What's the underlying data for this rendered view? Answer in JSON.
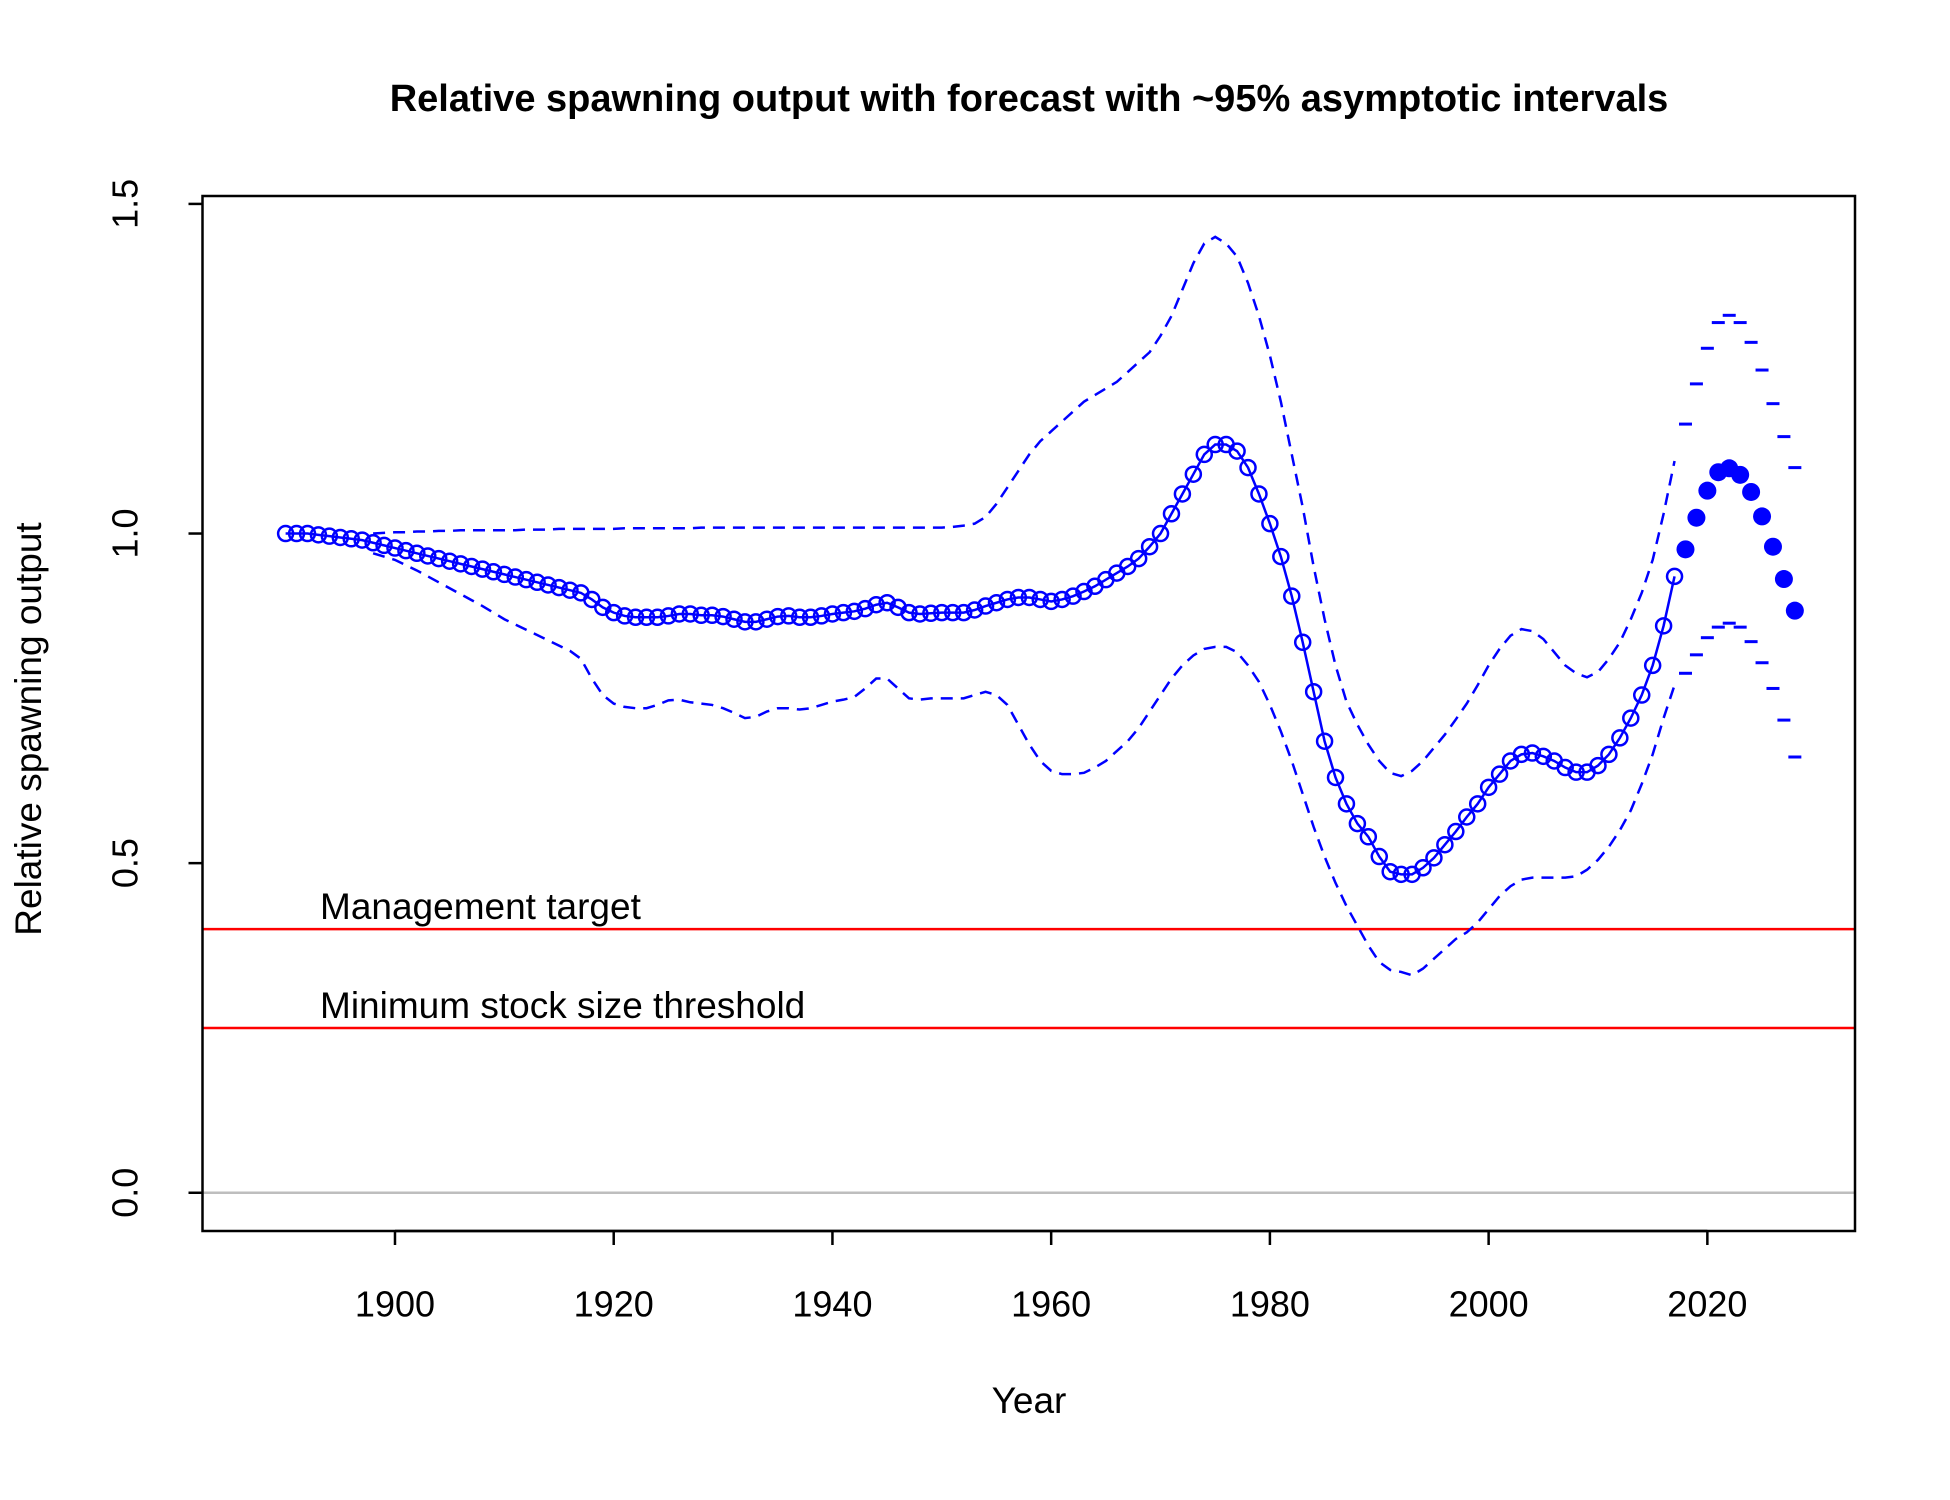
{
  "chart_data": {
    "type": "line",
    "title": "Relative spawning output with forecast with ~95% asymptotic intervals",
    "xlabel": "Year",
    "ylabel": "Relative spawning output",
    "xlim": [
      1882.4,
      2033.5
    ],
    "ylim": [
      -0.058,
      1.512
    ],
    "xticks": [
      1900,
      1920,
      1940,
      1960,
      1980,
      2000,
      2020
    ],
    "yticks": [
      {
        "value": 0,
        "label": "0.0"
      },
      0.5,
      {
        "value": 1,
        "label": "1.0"
      },
      {
        "value": 1.5,
        "label": "1.5"
      }
    ],
    "x": [
      1890,
      1891,
      1892,
      1893,
      1894,
      1895,
      1896,
      1897,
      1898,
      1899,
      1900,
      1901,
      1902,
      1903,
      1904,
      1905,
      1906,
      1907,
      1908,
      1909,
      1910,
      1911,
      1912,
      1913,
      1914,
      1915,
      1916,
      1917,
      1918,
      1919,
      1920,
      1921,
      1922,
      1923,
      1924,
      1925,
      1926,
      1927,
      1928,
      1929,
      1930,
      1931,
      1932,
      1933,
      1934,
      1935,
      1936,
      1937,
      1938,
      1939,
      1940,
      1941,
      1942,
      1943,
      1944,
      1945,
      1946,
      1947,
      1948,
      1949,
      1950,
      1951,
      1952,
      1953,
      1954,
      1955,
      1956,
      1957,
      1958,
      1959,
      1960,
      1961,
      1962,
      1963,
      1964,
      1965,
      1966,
      1967,
      1968,
      1969,
      1970,
      1971,
      1972,
      1973,
      1974,
      1975,
      1976,
      1977,
      1978,
      1979,
      1980,
      1981,
      1982,
      1983,
      1984,
      1985,
      1986,
      1987,
      1988,
      1989,
      1990,
      1991,
      1992,
      1993,
      1994,
      1995,
      1996,
      1997,
      1998,
      1999,
      2000,
      2001,
      2002,
      2003,
      2004,
      2005,
      2006,
      2007,
      2008,
      2009,
      2010,
      2011,
      2012,
      2013,
      2014,
      2015,
      2016,
      2017
    ],
    "series": [
      {
        "style": "line-points",
        "color": "#0000ff",
        "values": [
          1.0,
          1.0,
          1.0,
          0.998,
          0.996,
          0.994,
          0.992,
          0.99,
          0.986,
          0.982,
          0.978,
          0.974,
          0.97,
          0.966,
          0.962,
          0.958,
          0.954,
          0.95,
          0.946,
          0.942,
          0.938,
          0.934,
          0.93,
          0.926,
          0.922,
          0.918,
          0.914,
          0.91,
          0.9,
          0.888,
          0.88,
          0.875,
          0.873,
          0.873,
          0.873,
          0.875,
          0.878,
          0.878,
          0.876,
          0.876,
          0.874,
          0.87,
          0.866,
          0.866,
          0.87,
          0.874,
          0.875,
          0.873,
          0.873,
          0.875,
          0.878,
          0.88,
          0.882,
          0.886,
          0.892,
          0.895,
          0.888,
          0.88,
          0.878,
          0.879,
          0.88,
          0.88,
          0.88,
          0.884,
          0.89,
          0.895,
          0.9,
          0.903,
          0.903,
          0.9,
          0.897,
          0.9,
          0.905,
          0.912,
          0.92,
          0.93,
          0.94,
          0.95,
          0.962,
          0.98,
          1.0,
          1.03,
          1.06,
          1.09,
          1.12,
          1.135,
          1.135,
          1.125,
          1.1,
          1.06,
          1.015,
          0.965,
          0.905,
          0.835,
          0.76,
          0.685,
          0.63,
          0.59,
          0.56,
          0.54,
          0.51,
          0.487,
          0.483,
          0.483,
          0.493,
          0.508,
          0.528,
          0.548,
          0.57,
          0.59,
          0.615,
          0.635,
          0.655,
          0.665,
          0.667,
          0.662,
          0.655,
          0.645,
          0.638,
          0.638,
          0.648,
          0.665,
          0.69,
          0.72,
          0.755,
          0.8,
          0.86,
          0.935
        ]
      },
      {
        "style": "dashed",
        "color": "#0000ff",
        "values": [
          null,
          null,
          null,
          null,
          null,
          null,
          null,
          null,
          1.0,
          1.001,
          1.002,
          1.002,
          1.003,
          1.003,
          1.004,
          1.004,
          1.005,
          1.005,
          1.005,
          1.005,
          1.005,
          1.005,
          1.006,
          1.006,
          1.006,
          1.007,
          1.007,
          1.007,
          1.007,
          1.007,
          1.007,
          1.008,
          1.008,
          1.008,
          1.008,
          1.008,
          1.008,
          1.008,
          1.009,
          1.009,
          1.009,
          1.009,
          1.009,
          1.009,
          1.009,
          1.009,
          1.009,
          1.009,
          1.009,
          1.009,
          1.009,
          1.009,
          1.009,
          1.009,
          1.009,
          1.009,
          1.009,
          1.009,
          1.009,
          1.009,
          1.009,
          1.01,
          1.012,
          1.015,
          1.025,
          1.045,
          1.07,
          1.095,
          1.12,
          1.14,
          1.155,
          1.17,
          1.185,
          1.2,
          1.21,
          1.22,
          1.23,
          1.245,
          1.26,
          1.275,
          1.3,
          1.33,
          1.37,
          1.41,
          1.44,
          1.45,
          1.44,
          1.42,
          1.38,
          1.33,
          1.27,
          1.2,
          1.12,
          1.04,
          0.95,
          0.87,
          0.8,
          0.745,
          0.71,
          0.68,
          0.655,
          0.637,
          0.632,
          0.64,
          0.655,
          0.675,
          0.695,
          0.718,
          0.742,
          0.77,
          0.8,
          0.825,
          0.845,
          0.855,
          0.852,
          0.84,
          0.82,
          0.8,
          0.788,
          0.782,
          0.79,
          0.81,
          0.835,
          0.87,
          0.91,
          0.96,
          1.03,
          1.11
        ]
      },
      {
        "style": "dashed",
        "color": "#0000ff",
        "values": [
          null,
          null,
          null,
          null,
          null,
          null,
          null,
          null,
          0.97,
          0.965,
          0.96,
          0.952,
          0.944,
          0.935,
          0.926,
          0.917,
          0.908,
          0.899,
          0.89,
          0.88,
          0.87,
          0.862,
          0.854,
          0.846,
          0.838,
          0.83,
          0.822,
          0.81,
          0.78,
          0.755,
          0.742,
          0.737,
          0.735,
          0.735,
          0.74,
          0.747,
          0.748,
          0.744,
          0.742,
          0.74,
          0.735,
          0.728,
          0.72,
          0.722,
          0.73,
          0.735,
          0.735,
          0.733,
          0.735,
          0.74,
          0.745,
          0.748,
          0.752,
          0.765,
          0.78,
          0.78,
          0.765,
          0.75,
          0.748,
          0.75,
          0.75,
          0.75,
          0.75,
          0.755,
          0.76,
          0.755,
          0.74,
          0.71,
          0.68,
          0.655,
          0.64,
          0.635,
          0.635,
          0.637,
          0.645,
          0.655,
          0.67,
          0.685,
          0.705,
          0.73,
          0.755,
          0.78,
          0.8,
          0.815,
          0.825,
          0.828,
          0.828,
          0.82,
          0.8,
          0.775,
          0.74,
          0.7,
          0.655,
          0.605,
          0.555,
          0.51,
          0.47,
          0.435,
          0.405,
          0.375,
          0.35,
          0.338,
          0.335,
          0.33,
          0.34,
          0.355,
          0.37,
          0.385,
          0.395,
          0.41,
          0.43,
          0.45,
          0.465,
          0.475,
          0.478,
          0.478,
          0.478,
          0.478,
          0.48,
          0.49,
          0.505,
          0.525,
          0.55,
          0.58,
          0.62,
          0.665,
          0.72,
          0.77
        ]
      },
      {
        "style": "filled-points",
        "color": "#0000ff",
        "x": [
          2018,
          2019,
          2020,
          2021,
          2022,
          2023,
          2024,
          2025,
          2026,
          2027,
          2028
        ],
        "values": [
          0.976,
          1.024,
          1.065,
          1.093,
          1.099,
          1.089,
          1.063,
          1.026,
          0.98,
          0.931,
          0.883
        ]
      },
      {
        "style": "dash-marks",
        "color": "#0000ff",
        "x": [
          2018,
          2019,
          2020,
          2021,
          2022,
          2023,
          2024,
          2025,
          2026,
          2027,
          2028
        ],
        "values": [
          1.166,
          1.227,
          1.281,
          1.32,
          1.331,
          1.32,
          1.29,
          1.248,
          1.197,
          1.147,
          1.1
        ]
      },
      {
        "style": "dash-marks",
        "color": "#0000ff",
        "x": [
          2018,
          2019,
          2020,
          2021,
          2022,
          2023,
          2024,
          2025,
          2026,
          2027,
          2028
        ],
        "values": [
          0.788,
          0.816,
          0.842,
          0.858,
          0.864,
          0.858,
          0.836,
          0.804,
          0.765,
          0.717,
          0.661
        ]
      }
    ],
    "hlines": [
      {
        "value": 0.4,
        "label": "Management target",
        "color": "#ff0000"
      },
      {
        "value": 0.25,
        "label": "Minimum stock size threshold",
        "color": "#ff0000"
      },
      {
        "value": 0,
        "color": "#bebebe"
      }
    ]
  }
}
